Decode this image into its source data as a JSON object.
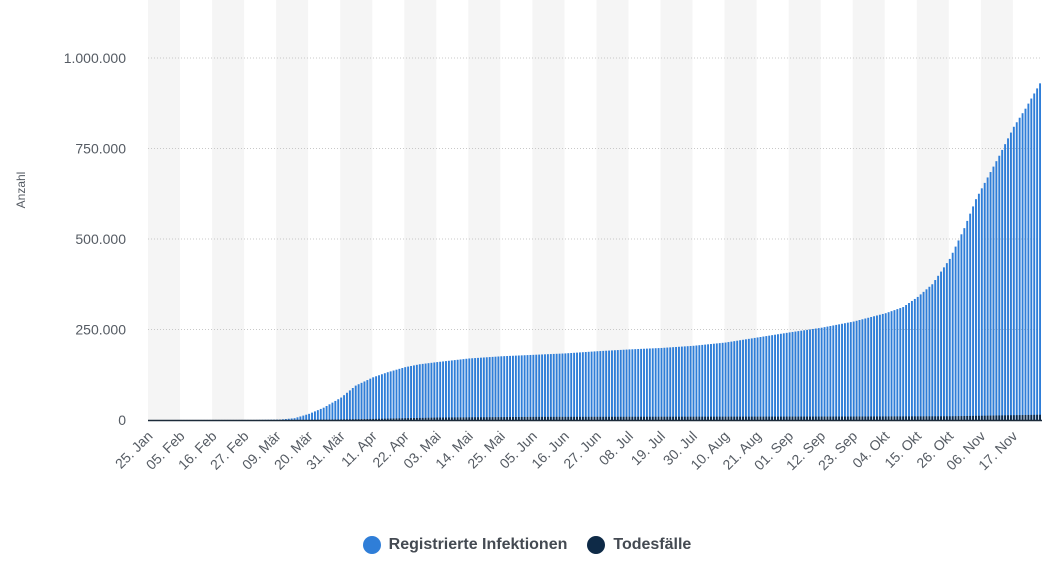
{
  "chart_data": {
    "type": "bar",
    "ylabel": "Anzahl",
    "ylim": [
      0,
      1000000
    ],
    "yticks": [
      {
        "value": 0,
        "label": "0"
      },
      {
        "value": 250000,
        "label": "250.000"
      },
      {
        "value": 500000,
        "label": "500.000"
      },
      {
        "value": 750000,
        "label": "750.000"
      },
      {
        "value": 1000000,
        "label": "1.000.000"
      }
    ],
    "x_start": "2020-01-25",
    "x_end": "2020-11-26",
    "xtick_labels": [
      "25. Jan",
      "05. Feb",
      "16. Feb",
      "27. Feb",
      "09. Mär",
      "20. Mär",
      "31. Mär",
      "11. Apr",
      "22. Apr",
      "03. Mai",
      "14. Mai",
      "25. Mai",
      "05. Jun",
      "16. Jun",
      "27. Jun",
      "08. Jul",
      "19. Jul",
      "30. Jul",
      "10. Aug",
      "21. Aug",
      "01. Sep",
      "12. Sep",
      "23. Sep",
      "04. Okt",
      "15. Okt",
      "26. Okt",
      "06. Nov",
      "17. Nov"
    ],
    "grid": true,
    "legend_position": "bottom",
    "series": [
      {
        "name": "Registrierte Infektionen",
        "color": "#2f7ed8",
        "points": [
          [
            "2020-01-25",
            0
          ],
          [
            "2020-03-01",
            100
          ],
          [
            "2020-03-10",
            1200
          ],
          [
            "2020-03-15",
            5000
          ],
          [
            "2020-03-20",
            17000
          ],
          [
            "2020-03-25",
            34000
          ],
          [
            "2020-03-31",
            62000
          ],
          [
            "2020-04-05",
            95000
          ],
          [
            "2020-04-11",
            118000
          ],
          [
            "2020-04-16",
            132000
          ],
          [
            "2020-04-22",
            146000
          ],
          [
            "2020-04-27",
            154000
          ],
          [
            "2020-05-03",
            160000
          ],
          [
            "2020-05-14",
            170000
          ],
          [
            "2020-05-25",
            176000
          ],
          [
            "2020-06-05",
            180000
          ],
          [
            "2020-06-16",
            184000
          ],
          [
            "2020-06-27",
            190000
          ],
          [
            "2020-07-08",
            195000
          ],
          [
            "2020-07-19",
            199000
          ],
          [
            "2020-07-30",
            205000
          ],
          [
            "2020-08-10",
            214000
          ],
          [
            "2020-08-21",
            228000
          ],
          [
            "2020-09-01",
            242000
          ],
          [
            "2020-09-12",
            255000
          ],
          [
            "2020-09-23",
            272000
          ],
          [
            "2020-10-04",
            295000
          ],
          [
            "2020-10-10",
            312000
          ],
          [
            "2020-10-15",
            340000
          ],
          [
            "2020-10-20",
            375000
          ],
          [
            "2020-10-26",
            445000
          ],
          [
            "2020-10-31",
            530000
          ],
          [
            "2020-11-04",
            610000
          ],
          [
            "2020-11-08",
            670000
          ],
          [
            "2020-11-12",
            730000
          ],
          [
            "2020-11-17",
            810000
          ],
          [
            "2020-11-21",
            860000
          ],
          [
            "2020-11-26",
            930000
          ]
        ]
      },
      {
        "name": "Todesfälle",
        "color": "#0e2a47",
        "points": [
          [
            "2020-01-25",
            0
          ],
          [
            "2020-03-20",
            100
          ],
          [
            "2020-04-11",
            3000
          ],
          [
            "2020-05-03",
            6800
          ],
          [
            "2020-06-05",
            8600
          ],
          [
            "2020-07-30",
            9100
          ],
          [
            "2020-09-23",
            9500
          ],
          [
            "2020-10-26",
            10200
          ],
          [
            "2020-11-26",
            14500
          ]
        ]
      }
    ]
  }
}
